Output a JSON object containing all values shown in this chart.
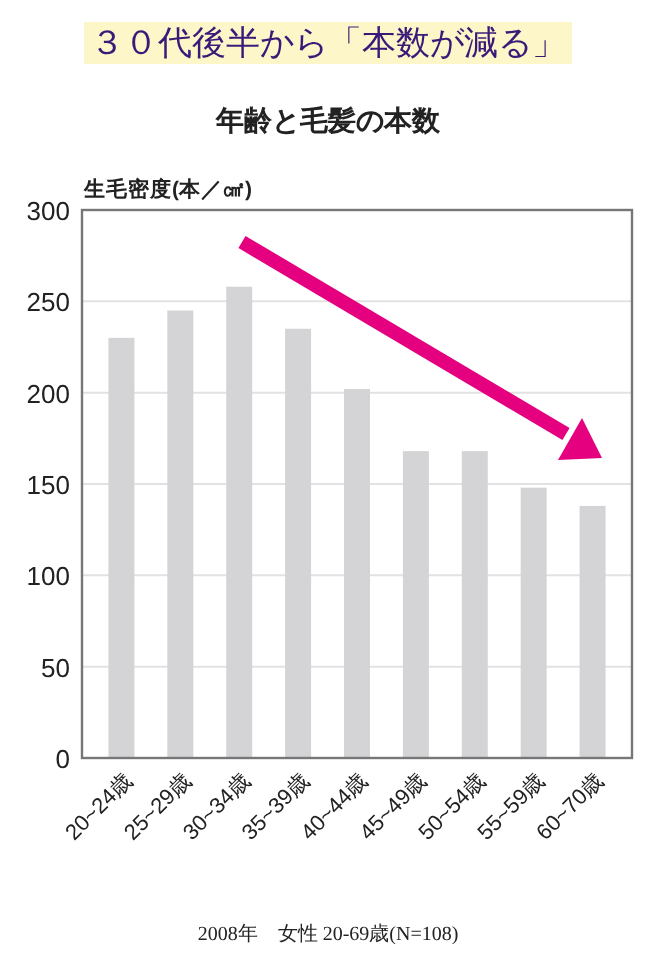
{
  "chart_data": {
    "type": "bar",
    "title": "３０代後半から「本数が減る」",
    "subtitle": "年齢と毛髪の本数",
    "ylabel": "生毛密度(本／㎠)",
    "categories": [
      "20~24歳",
      "25~29歳",
      "30~34歳",
      "35~39歳",
      "40~44歳",
      "45~49歳",
      "50~54歳",
      "55~59歳",
      "60~70歳"
    ],
    "values": [
      230,
      245,
      258,
      235,
      202,
      168,
      168,
      148,
      138
    ],
    "color": "#d4d4d6",
    "ylim": [
      0,
      300
    ],
    "yticks": [
      0,
      50,
      100,
      150,
      200,
      250,
      300
    ],
    "grid": "y",
    "annotations": [
      "2008年　女性 20-69歳(N=108)"
    ]
  }
}
